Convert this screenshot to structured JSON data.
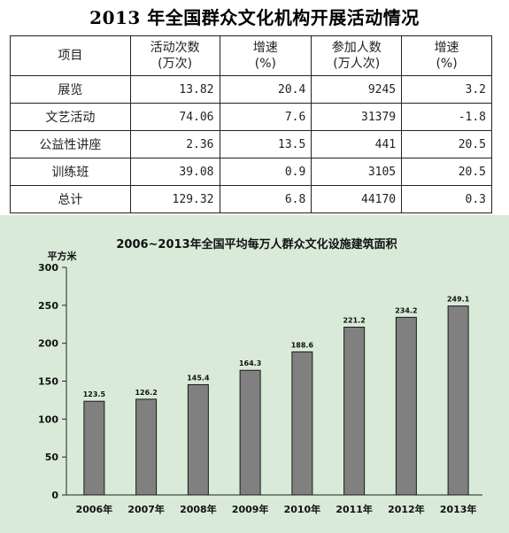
{
  "table": {
    "title": "2013 年全国群众文化机构开展活动情况",
    "headers": [
      {
        "line1": "项目",
        "line2": ""
      },
      {
        "line1": "活动次数",
        "line2": "(万次)"
      },
      {
        "line1": "增速",
        "line2": "(%)"
      },
      {
        "line1": "参加人数",
        "line2": "(万人次)"
      },
      {
        "line1": "增速",
        "line2": "(%)"
      }
    ],
    "rows": [
      [
        "展览",
        "13.82",
        "20.4",
        "9245",
        "3.2"
      ],
      [
        "文艺活动",
        "74.06",
        "7.6",
        "31379",
        "-1.8"
      ],
      [
        "公益性讲座",
        "2.36",
        "13.5",
        "441",
        "20.5"
      ],
      [
        "训练班",
        "39.08",
        "0.9",
        "3105",
        "20.5"
      ],
      [
        "总计",
        "129.32",
        "6.8",
        "44170",
        "0.3"
      ]
    ]
  },
  "chart_data": {
    "type": "bar",
    "title": "2006~2013年全国平均每万人群众文化设施建筑面积",
    "ylabel": "平方米",
    "xlabel": "",
    "categories": [
      "2006年",
      "2007年",
      "2008年",
      "2009年",
      "2010年",
      "2011年",
      "2012年",
      "2013年"
    ],
    "values": [
      123.5,
      126.2,
      145.4,
      164.3,
      188.6,
      221.2,
      234.2,
      249.1
    ],
    "value_labels": [
      "123.5",
      "126.2",
      "145.4",
      "164.3",
      "188.6",
      "221.2",
      "234.2",
      "249.1"
    ],
    "ylim": [
      0,
      300
    ],
    "yticks": [
      "0",
      "50",
      "100",
      "150",
      "200",
      "250",
      "300"
    ],
    "grid": false,
    "colors": {
      "bar": "#808080",
      "bar_stroke": "#1a1a1a",
      "background": "#d9ead9"
    }
  }
}
